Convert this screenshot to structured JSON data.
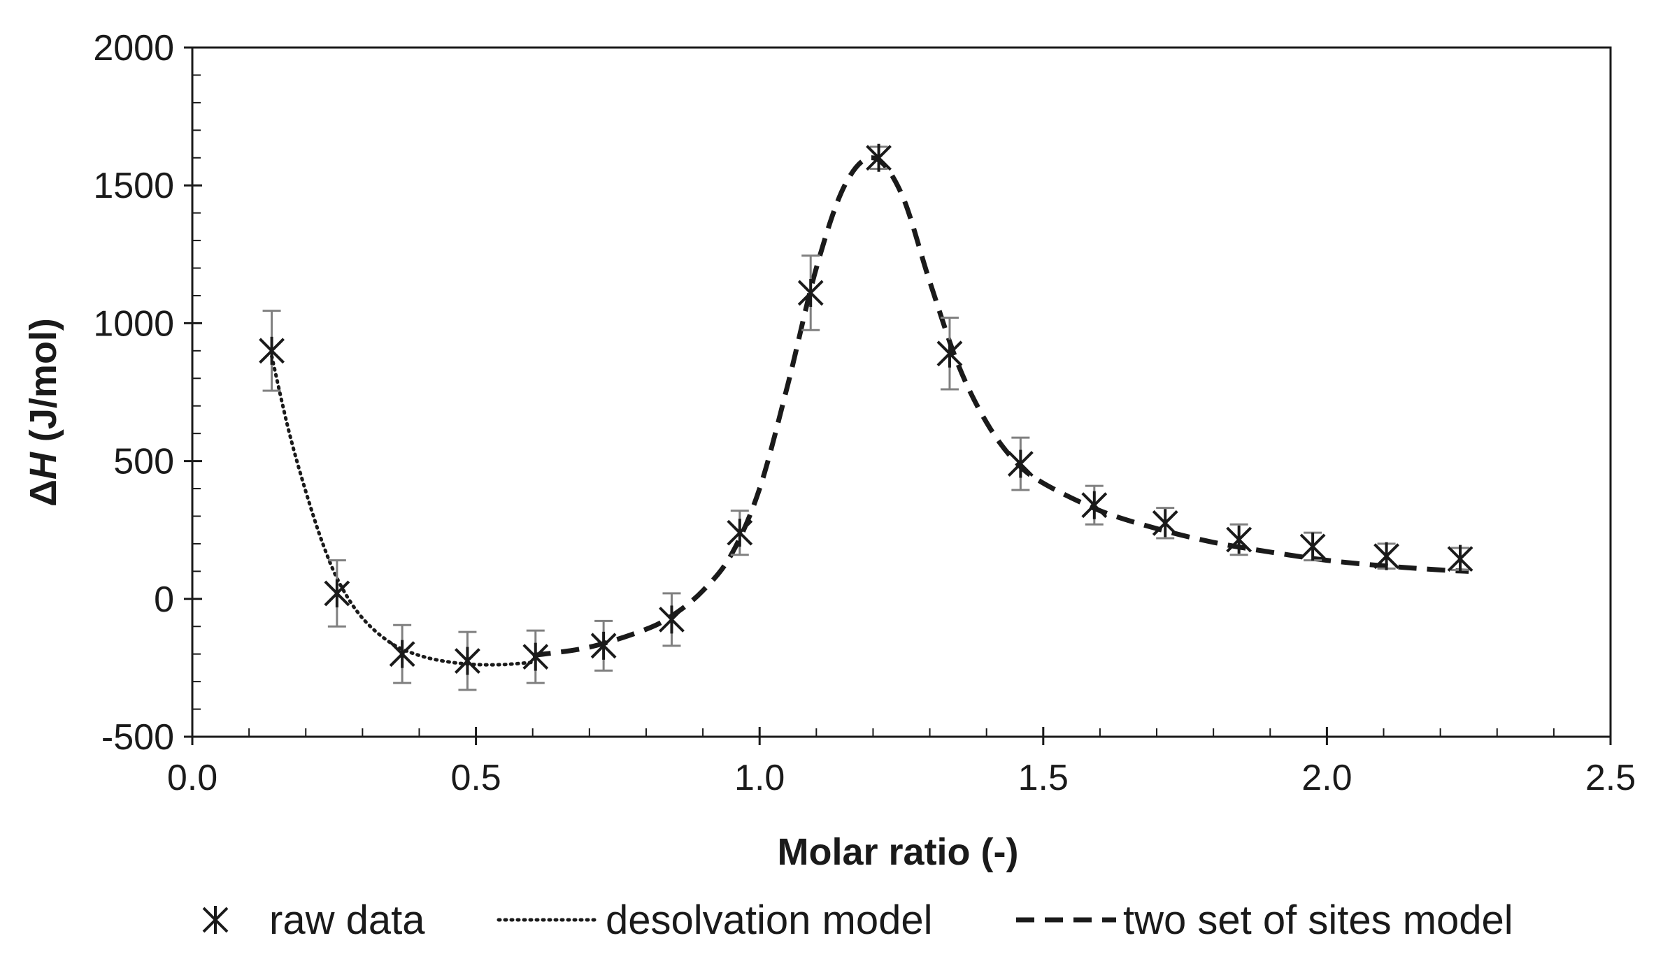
{
  "chart_data": {
    "type": "scatter",
    "xlabel": "Molar ratio (-)",
    "ylabel_delta": "Δ",
    "ylabel_var": "H",
    "ylabel_unit": " (J/mol)",
    "xlim": [
      0.0,
      2.5
    ],
    "ylim": [
      -500,
      2000
    ],
    "x_ticks": [
      0.0,
      0.5,
      1.0,
      1.5,
      2.0,
      2.5
    ],
    "x_tick_labels": [
      "0.0",
      "0.5",
      "1.0",
      "1.5",
      "2.0",
      "2.5"
    ],
    "x_minor_step": 0.1,
    "y_ticks": [
      -500,
      0,
      500,
      1000,
      1500,
      2000
    ],
    "y_tick_labels": [
      "-500",
      "0",
      "500",
      "1000",
      "1500",
      "2000"
    ],
    "y_minor_step": 100,
    "grid": false,
    "legend_position": "bottom",
    "series": [
      {
        "name": "raw data",
        "style": "markers",
        "color": "#1a1a1a",
        "errorbar_color": "#808080",
        "points": [
          {
            "x": 0.14,
            "y": 900,
            "err": 145
          },
          {
            "x": 0.255,
            "y": 20,
            "err": 120
          },
          {
            "x": 0.37,
            "y": -200,
            "err": 105
          },
          {
            "x": 0.485,
            "y": -225,
            "err": 105
          },
          {
            "x": 0.605,
            "y": -210,
            "err": 95
          },
          {
            "x": 0.725,
            "y": -170,
            "err": 90
          },
          {
            "x": 0.845,
            "y": -75,
            "err": 95
          },
          {
            "x": 0.965,
            "y": 240,
            "err": 80
          },
          {
            "x": 1.09,
            "y": 1110,
            "err": 135
          },
          {
            "x": 1.21,
            "y": 1600,
            "err": 40
          },
          {
            "x": 1.335,
            "y": 890,
            "err": 130
          },
          {
            "x": 1.46,
            "y": 490,
            "err": 95
          },
          {
            "x": 1.59,
            "y": 340,
            "err": 70
          },
          {
            "x": 1.715,
            "y": 275,
            "err": 55
          },
          {
            "x": 1.845,
            "y": 215,
            "err": 55
          },
          {
            "x": 1.975,
            "y": 190,
            "err": 50
          },
          {
            "x": 2.105,
            "y": 155,
            "err": 45
          },
          {
            "x": 2.235,
            "y": 145,
            "err": 40
          }
        ]
      },
      {
        "name": "desolvation model",
        "style": "dotted",
        "color": "#1a1a1a",
        "x": [
          0.14,
          0.17,
          0.2,
          0.23,
          0.26,
          0.3,
          0.35,
          0.4,
          0.45,
          0.5,
          0.55,
          0.6
        ],
        "y": [
          880,
          610,
          390,
          200,
          55,
          -70,
          -160,
          -205,
          -228,
          -238,
          -238,
          -230
        ]
      },
      {
        "name": "two set of sites model",
        "style": "dashed",
        "color": "#1a1a1a",
        "x": [
          0.6,
          0.7,
          0.8,
          0.85,
          0.9,
          0.95,
          1.0,
          1.05,
          1.1,
          1.15,
          1.2,
          1.25,
          1.3,
          1.35,
          1.4,
          1.45,
          1.5,
          1.6,
          1.7,
          1.8,
          1.9,
          2.0,
          2.1,
          2.2,
          2.25
        ],
        "y": [
          -205,
          -175,
          -110,
          -55,
          30,
          160,
          400,
          780,
          1200,
          1500,
          1600,
          1470,
          1150,
          850,
          640,
          500,
          420,
          320,
          255,
          205,
          170,
          140,
          120,
          105,
          100
        ]
      }
    ]
  }
}
